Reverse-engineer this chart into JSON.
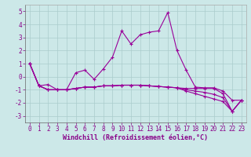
{
  "xlabel": "Windchill (Refroidissement éolien,°C)",
  "background_color": "#cce8e8",
  "grid_color": "#aacccc",
  "line_color": "#990099",
  "xlim": [
    -0.5,
    23.5
  ],
  "ylim": [
    -3.5,
    5.5
  ],
  "yticks": [
    -3,
    -2,
    -1,
    0,
    1,
    2,
    3,
    4,
    5
  ],
  "xticks": [
    0,
    1,
    2,
    3,
    4,
    5,
    6,
    7,
    8,
    9,
    10,
    11,
    12,
    13,
    14,
    15,
    16,
    17,
    18,
    19,
    20,
    21,
    22,
    23
  ],
  "series1_x": [
    0,
    1,
    2,
    3,
    4,
    5,
    6,
    7,
    8,
    9,
    10,
    11,
    12,
    13,
    14,
    15,
    16,
    17,
    18,
    19,
    20,
    21,
    22,
    23
  ],
  "series1_y": [
    1.0,
    -0.7,
    -0.6,
    -1.0,
    -1.0,
    0.3,
    0.5,
    -0.2,
    0.6,
    1.5,
    3.5,
    2.5,
    3.2,
    3.4,
    3.5,
    4.9,
    2.0,
    0.5,
    -0.8,
    -0.85,
    -0.85,
    -1.1,
    -1.8,
    -1.8
  ],
  "series2_x": [
    0,
    1,
    2,
    3,
    4,
    5,
    6,
    7,
    8,
    9,
    10,
    11,
    12,
    13,
    14,
    15,
    16,
    17,
    18,
    19,
    20,
    21,
    22,
    23
  ],
  "series2_y": [
    1.0,
    -0.7,
    -1.0,
    -1.0,
    -1.0,
    -0.9,
    -0.8,
    -0.8,
    -0.7,
    -0.7,
    -0.65,
    -0.65,
    -0.65,
    -0.7,
    -0.75,
    -0.8,
    -0.85,
    -0.9,
    -0.9,
    -0.9,
    -0.9,
    -1.3,
    -2.65,
    -1.8
  ],
  "series3_x": [
    0,
    1,
    2,
    3,
    4,
    5,
    6,
    7,
    8,
    9,
    10,
    11,
    12,
    13,
    14,
    15,
    16,
    17,
    18,
    19,
    20,
    21,
    22,
    23
  ],
  "series3_y": [
    1.0,
    -0.7,
    -1.0,
    -1.0,
    -1.0,
    -0.9,
    -0.8,
    -0.8,
    -0.7,
    -0.7,
    -0.65,
    -0.65,
    -0.65,
    -0.7,
    -0.75,
    -0.8,
    -0.85,
    -1.0,
    -1.1,
    -1.2,
    -1.35,
    -1.6,
    -2.65,
    -1.8
  ],
  "series4_x": [
    0,
    1,
    2,
    3,
    4,
    5,
    6,
    7,
    8,
    9,
    10,
    11,
    12,
    13,
    14,
    15,
    16,
    17,
    18,
    19,
    20,
    21,
    22,
    23
  ],
  "series4_y": [
    1.0,
    -0.7,
    -1.0,
    -1.0,
    -1.0,
    -0.9,
    -0.8,
    -0.8,
    -0.7,
    -0.7,
    -0.65,
    -0.65,
    -0.65,
    -0.7,
    -0.75,
    -0.8,
    -0.85,
    -1.1,
    -1.3,
    -1.5,
    -1.7,
    -1.9,
    -2.65,
    -1.8
  ],
  "xlabel_fontsize": 6.0,
  "tick_fontsize": 5.5
}
